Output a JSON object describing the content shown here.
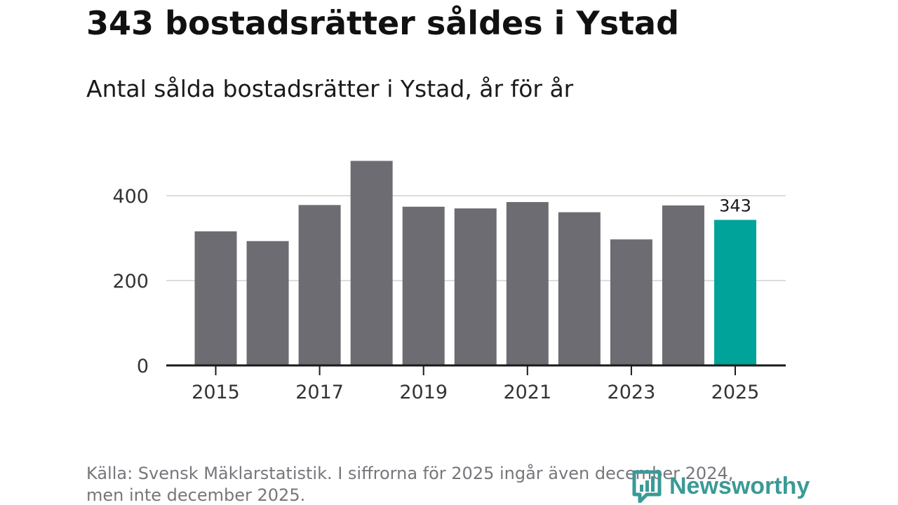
{
  "header": {
    "title": "343 bostadsrätter såldes i Ystad",
    "subtitle": "Antal sålda bostadsrätter i Ystad, år för år"
  },
  "footer": {
    "source_line1": "Källa: Svensk Mäklarstatistik. I siffrorna för 2025 ingår även december 2024,",
    "source_line2": "men inte december 2025.",
    "brand": "Newsworthy"
  },
  "colors": {
    "bar": "#6d6c72",
    "highlight": "#00a39a",
    "grid": "#dcdcdc",
    "axis": "#1a1a1a",
    "brand": "#3a9a96"
  },
  "chart_data": {
    "type": "bar",
    "title": "Antal sålda bostadsrätter i Ystad, år för år",
    "xlabel": "",
    "ylabel": "",
    "categories": [
      "2015",
      "2016",
      "2017",
      "2018",
      "2019",
      "2020",
      "2021",
      "2022",
      "2023",
      "2024",
      "2025"
    ],
    "values": [
      316,
      293,
      378,
      482,
      374,
      370,
      385,
      361,
      297,
      377,
      343
    ],
    "ylim": [
      0,
      500
    ],
    "yticks": [
      0,
      200,
      400
    ],
    "xtick_labels": [
      "2015",
      "2017",
      "2019",
      "2021",
      "2023",
      "2025"
    ],
    "highlight_index": 10,
    "data_labels": [
      {
        "category": "2025",
        "text": "343"
      }
    ],
    "grid": true,
    "legend": "none"
  }
}
